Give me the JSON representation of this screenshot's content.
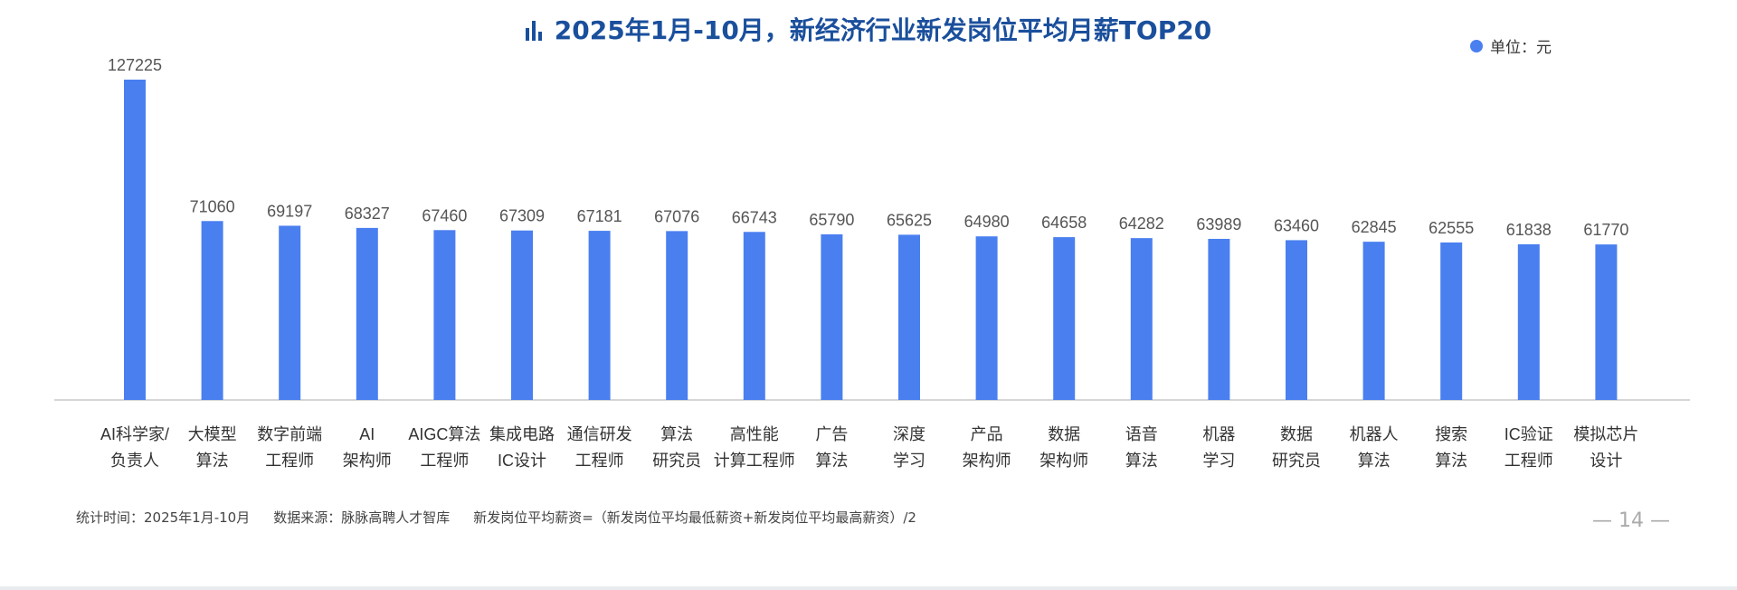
{
  "title": "2025年1月-10月，新经济行业新发岗位平均月薪TOP20",
  "legend": {
    "label": "单位：元",
    "color": "#4a7ff0"
  },
  "footer": {
    "time": "统计时间：2025年1月-10月",
    "source": "数据来源：脉脉高聘人才智库",
    "formula": "新发岗位平均薪资=（新发岗位平均最低薪资+新发岗位平均最高薪资）/2"
  },
  "page_number": "— 14 —",
  "chart_data": {
    "type": "bar",
    "categories": [
      [
        "AI科学家/",
        "负责人"
      ],
      [
        "大模型",
        "算法"
      ],
      [
        "数字前端",
        "工程师"
      ],
      [
        "AI",
        "架构师"
      ],
      [
        "AIGC算法",
        "工程师"
      ],
      [
        "集成电路",
        "IC设计"
      ],
      [
        "通信研发",
        "工程师"
      ],
      [
        "算法",
        "研究员"
      ],
      [
        "高性能",
        "计算工程师"
      ],
      [
        "广告",
        "算法"
      ],
      [
        "深度",
        "学习"
      ],
      [
        "产品",
        "架构师"
      ],
      [
        "数据",
        "架构师"
      ],
      [
        "语音",
        "算法"
      ],
      [
        "机器",
        "学习"
      ],
      [
        "数据",
        "研究员"
      ],
      [
        "机器人",
        "算法"
      ],
      [
        "搜索",
        "算法"
      ],
      [
        "IC验证",
        "工程师"
      ],
      [
        "模拟芯片",
        "设计"
      ]
    ],
    "values": [
      127225,
      71060,
      69197,
      68327,
      67460,
      67309,
      67181,
      67076,
      66743,
      65790,
      65625,
      64980,
      64658,
      64282,
      63989,
      63460,
      62845,
      62555,
      61838,
      61770
    ],
    "bar_color": "#4a7ff0",
    "ylim": [
      0,
      127225
    ],
    "grid": false
  }
}
